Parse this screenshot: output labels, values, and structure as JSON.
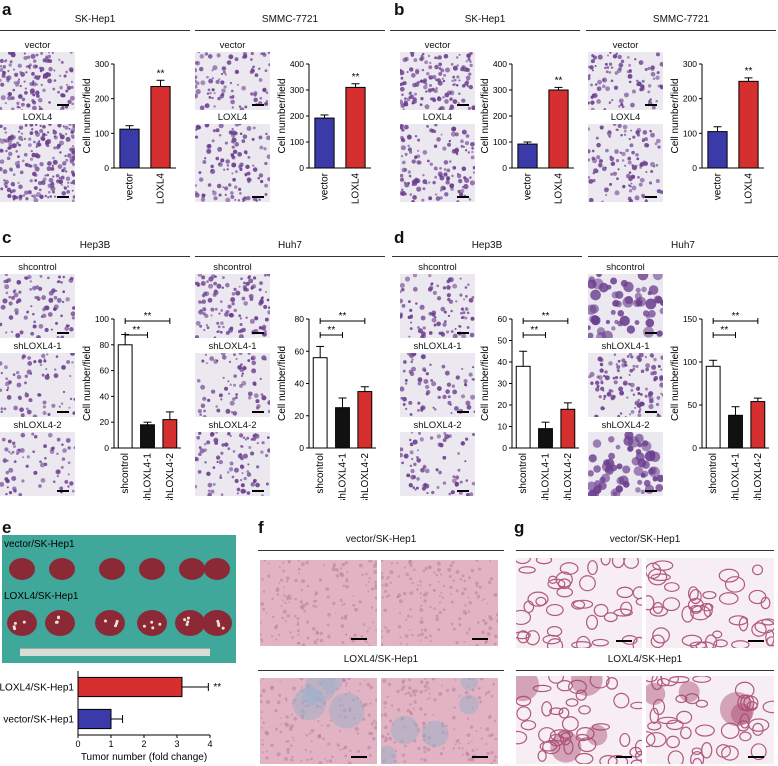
{
  "panels": {
    "a": {
      "letter": "a",
      "cells": [
        {
          "name": "SK-Hep1",
          "images": [
            "vector",
            "LOXL4"
          ],
          "chart": {
            "type": "bar",
            "categories": [
              "vector",
              "LOXL4"
            ],
            "values": [
              112,
              235
            ],
            "errors": [
              10,
              18
            ],
            "ylim": [
              0,
              300
            ],
            "yticks": [
              0,
              100,
              200,
              300
            ],
            "ylabel": "Cell number/field",
            "colors": [
              "#3a3aa8",
              "#d62f2f"
            ],
            "signif": "**"
          }
        },
        {
          "name": "SMMC-7721",
          "images": [
            "vector",
            "LOXL4"
          ],
          "chart": {
            "type": "bar",
            "categories": [
              "vector",
              "LOXL4"
            ],
            "values": [
              192,
              310
            ],
            "errors": [
              12,
              14
            ],
            "ylim": [
              0,
              400
            ],
            "yticks": [
              0,
              100,
              200,
              300,
              400
            ],
            "ylabel": "Cell number/field",
            "colors": [
              "#3a3aa8",
              "#d62f2f"
            ],
            "signif": "**"
          }
        }
      ]
    },
    "b": {
      "letter": "b",
      "cells": [
        {
          "name": "SK-Hep1",
          "images": [
            "vector",
            "LOXL4"
          ],
          "chart": {
            "type": "bar",
            "categories": [
              "vector",
              "LOXL4"
            ],
            "values": [
              92,
              300
            ],
            "errors": [
              8,
              10
            ],
            "ylim": [
              0,
              400
            ],
            "yticks": [
              0,
              100,
              200,
              300,
              400
            ],
            "ylabel": "Cell number/field",
            "colors": [
              "#3a3aa8",
              "#d62f2f"
            ],
            "signif": "**"
          }
        },
        {
          "name": "SMMC-7721",
          "images": [
            "vector",
            "LOXL4"
          ],
          "chart": {
            "type": "bar",
            "categories": [
              "vector",
              "LOXL4"
            ],
            "values": [
              105,
              250
            ],
            "errors": [
              14,
              10
            ],
            "ylim": [
              0,
              300
            ],
            "yticks": [
              0,
              100,
              200,
              300
            ],
            "ylabel": "Cell number/field",
            "colors": [
              "#3a3aa8",
              "#d62f2f"
            ],
            "signif": "**"
          }
        }
      ]
    },
    "c": {
      "letter": "c",
      "cells": [
        {
          "name": "Hep3B",
          "images": [
            "shcontrol",
            "shLOXL4-1",
            "shLOXL4-2"
          ],
          "chart": {
            "type": "bar",
            "categories": [
              "shcontrol",
              "shLOXL4-1",
              "shLOXL4-2"
            ],
            "values": [
              80,
              18,
              22
            ],
            "errors": [
              8,
              2,
              6
            ],
            "ylim": [
              0,
              100
            ],
            "yticks": [
              0,
              20,
              40,
              60,
              80,
              100
            ],
            "ylabel": "Cell number/field",
            "colors": [
              "#ffffff",
              "#111111",
              "#d62f2f"
            ],
            "brackets": [
              {
                "from": 0,
                "to": 1,
                "label": "**"
              },
              {
                "from": 0,
                "to": 2,
                "label": "**"
              }
            ]
          }
        },
        {
          "name": "Huh7",
          "images": [
            "shcontrol",
            "shLOXL4-1",
            "shLOXL4-2"
          ],
          "chart": {
            "type": "bar",
            "categories": [
              "shcontrol",
              "shLOXL4-1",
              "shLOXL4-2"
            ],
            "values": [
              56,
              25,
              35
            ],
            "errors": [
              7,
              6,
              3
            ],
            "ylim": [
              0,
              80
            ],
            "yticks": [
              0,
              20,
              40,
              60,
              80
            ],
            "ylabel": "Cell number/field",
            "colors": [
              "#ffffff",
              "#111111",
              "#d62f2f"
            ],
            "brackets": [
              {
                "from": 0,
                "to": 1,
                "label": "**"
              },
              {
                "from": 0,
                "to": 2,
                "label": "**"
              }
            ]
          }
        }
      ]
    },
    "d": {
      "letter": "d",
      "cells": [
        {
          "name": "Hep3B",
          "images": [
            "shcontrol",
            "shLOXL4-1",
            "shLOXL4-2"
          ],
          "chart": {
            "type": "bar",
            "categories": [
              "shcontrol",
              "shLOXL4-1",
              "shLOXL4-2"
            ],
            "values": [
              38,
              9,
              18
            ],
            "errors": [
              7,
              3,
              3
            ],
            "ylim": [
              0,
              60
            ],
            "yticks": [
              0,
              10,
              20,
              30,
              40,
              50,
              60
            ],
            "ylabel": "Cell number/field",
            "colors": [
              "#ffffff",
              "#111111",
              "#d62f2f"
            ],
            "brackets": [
              {
                "from": 0,
                "to": 1,
                "label": "**"
              },
              {
                "from": 0,
                "to": 2,
                "label": "**"
              }
            ]
          }
        },
        {
          "name": "Huh7",
          "images": [
            "shcontrol",
            "shLOXL4-1",
            "shLOXL4-2"
          ],
          "chart": {
            "type": "bar",
            "categories": [
              "shcontrol",
              "shLOXL4-1",
              "shLOXL4-2"
            ],
            "values": [
              95,
              38,
              54
            ],
            "errors": [
              7,
              10,
              4
            ],
            "ylim": [
              0,
              150
            ],
            "yticks": [
              0,
              50,
              100,
              150
            ],
            "ylabel": "Cell number/field",
            "colors": [
              "#ffffff",
              "#111111",
              "#d62f2f"
            ],
            "brackets": [
              {
                "from": 0,
                "to": 1,
                "label": "**"
              },
              {
                "from": 0,
                "to": 2,
                "label": "**"
              }
            ]
          }
        }
      ]
    },
    "e": {
      "letter": "e",
      "photo_labels": [
        "vector/SK-Hep1",
        "LOXL4/SK-Hep1"
      ],
      "chart": {
        "type": "bar",
        "orientation": "horizontal",
        "categories": [
          "LOXL4/SK-Hep1",
          "vector/SK-Hep1"
        ],
        "values": [
          3.15,
          1.0
        ],
        "errors": [
          0.8,
          0.35
        ],
        "xlim": [
          0,
          4
        ],
        "xticks": [
          0,
          1,
          2,
          3,
          4
        ],
        "xlabel": "Tumor number (fold change)",
        "colors": [
          "#d62f2f",
          "#3a3aa8"
        ],
        "signif": "**"
      }
    },
    "f": {
      "letter": "f",
      "groups": [
        "vector/SK-Hep1",
        "LOXL4/SK-Hep1"
      ]
    },
    "g": {
      "letter": "g",
      "groups": [
        "vector/SK-Hep1",
        "LOXL4/SK-Hep1"
      ]
    }
  },
  "colors": {
    "stain_purple": "#6b3f8e",
    "tissue_pink": "#e2b3c2",
    "photo_teal": "#3fa89a",
    "liver_red": "#8b2a36"
  }
}
